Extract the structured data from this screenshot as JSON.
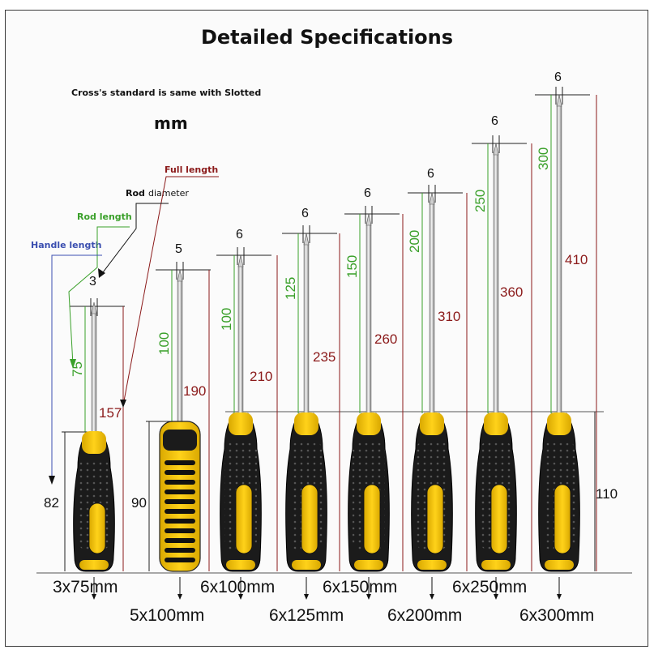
{
  "title": "Detailed Specifications",
  "note": "Cross's standard is same with Slotted",
  "unit": "mm",
  "legend": {
    "full_length": "Full length",
    "rod": "Rod",
    "diameter": "diameter",
    "rod_length": "Rod length",
    "handle_length": "Handle length"
  },
  "colors": {
    "full_length": "#8b1a1a",
    "rod_length": "#3aa02a",
    "handle_length": "#3b4fb0",
    "handle_yellow": "#f5c400",
    "handle_black": "#1b1b1b"
  },
  "screwdrivers": [
    {
      "label": "3x75mm",
      "diameter": "3",
      "rod_length": "75",
      "full_length": "157",
      "handle_length": "82"
    },
    {
      "label": "5x100mm",
      "diameter": "5",
      "rod_length": "100",
      "full_length": "190",
      "handle_length": "90"
    },
    {
      "label": "6x100mm",
      "diameter": "6",
      "rod_length": "100",
      "full_length": "210",
      "handle_length": ""
    },
    {
      "label": "6x125mm",
      "diameter": "6",
      "rod_length": "125",
      "full_length": "235",
      "handle_length": ""
    },
    {
      "label": "6x150mm",
      "diameter": "6",
      "rod_length": "150",
      "full_length": "260",
      "handle_length": ""
    },
    {
      "label": "6x200mm",
      "diameter": "6",
      "rod_length": "200",
      "full_length": "310",
      "handle_length": ""
    },
    {
      "label": "6x250mm",
      "diameter": "6",
      "rod_length": "250",
      "full_length": "360",
      "handle_length": ""
    },
    {
      "label": "6x300mm",
      "diameter": "6",
      "rod_length": "300",
      "full_length": "410",
      "handle_length": "110"
    }
  ]
}
